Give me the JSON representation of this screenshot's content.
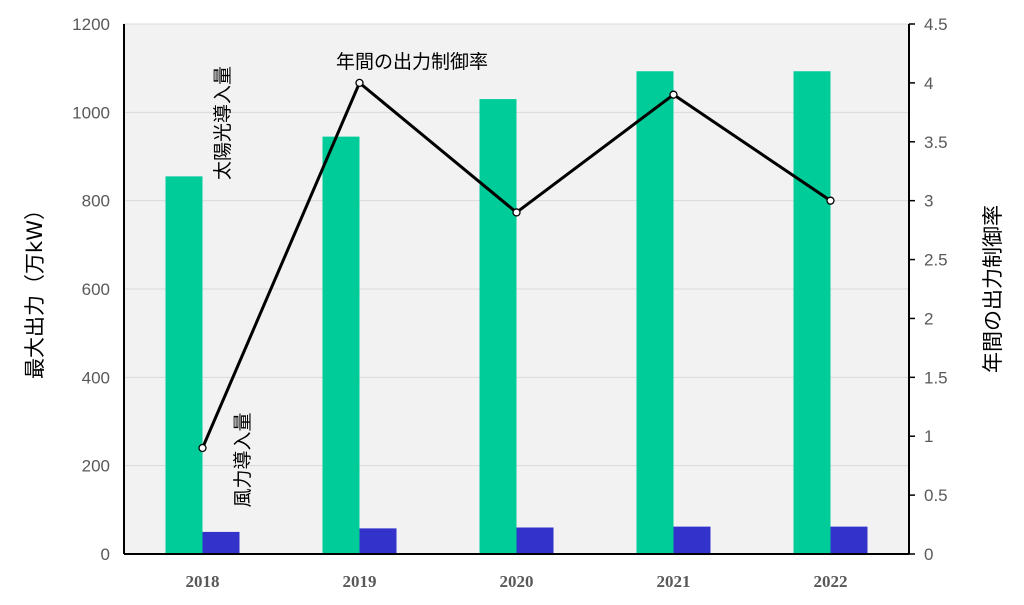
{
  "chart_data": {
    "type": "bar",
    "categories": [
      "2018",
      "2019",
      "2020",
      "2021",
      "2022"
    ],
    "series": [
      {
        "name": "太陽光導入量",
        "kind": "bar",
        "axis": "left",
        "color": "#00CC99",
        "values": [
          855,
          945,
          1030,
          1093,
          1093
        ]
      },
      {
        "name": "風力導入量",
        "kind": "bar",
        "axis": "left",
        "color": "#3333CC",
        "values": [
          50,
          58,
          60,
          62,
          62
        ]
      },
      {
        "name": "年間の出力制御率",
        "kind": "line",
        "axis": "right",
        "color": "#000000",
        "values": [
          0.9,
          4.0,
          2.9,
          3.9,
          3.0
        ]
      }
    ],
    "ylabel": "最大出力（万kW）",
    "ylabel_right": "年間の出力制御率",
    "ylim": [
      0,
      1200
    ],
    "ylim_right": [
      0,
      4.5
    ],
    "yticks": [
      "0",
      "200",
      "400",
      "600",
      "800",
      "1000",
      "1200"
    ],
    "yticks_right": [
      "0",
      "0.5",
      "1",
      "1.5",
      "2",
      "2.5",
      "3",
      "3.5",
      "4",
      "4.5"
    ],
    "grid": true,
    "plot_background": "#F2F2F2",
    "gridline_color": "#D9D9D9",
    "annotations": {
      "solar": "太陽光導入量",
      "wind": "風力導入量",
      "curtailment": "年間の出力制御率"
    }
  }
}
